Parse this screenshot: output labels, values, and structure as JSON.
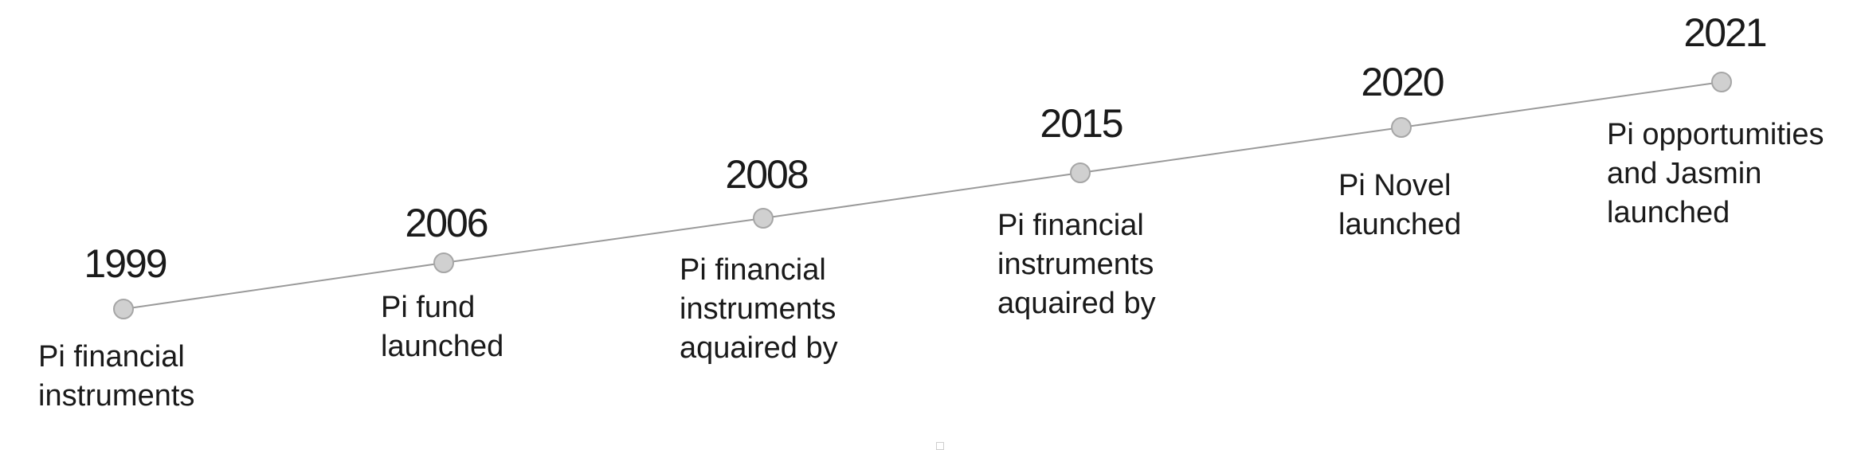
{
  "timeline": {
    "line_color": "#9a9a9a",
    "dot_fill": "#d0d0d0",
    "dot_stroke": "#a6a6a6",
    "events": [
      {
        "year": "1999",
        "lines": [
          "Pi financial",
          "instruments"
        ]
      },
      {
        "year": "2006",
        "lines": [
          "Pi fund",
          "launched"
        ]
      },
      {
        "year": "2008",
        "lines": [
          "Pi financial",
          "instruments",
          "aquaired by"
        ]
      },
      {
        "year": "2015",
        "lines": [
          "Pi financial",
          "instruments",
          "aquaired by"
        ]
      },
      {
        "year": "2020",
        "lines": [
          "Pi Novel",
          "launched"
        ]
      },
      {
        "year": "2021",
        "lines": [
          "Pi opportumities",
          "and Jasmin",
          "launched"
        ]
      }
    ]
  }
}
